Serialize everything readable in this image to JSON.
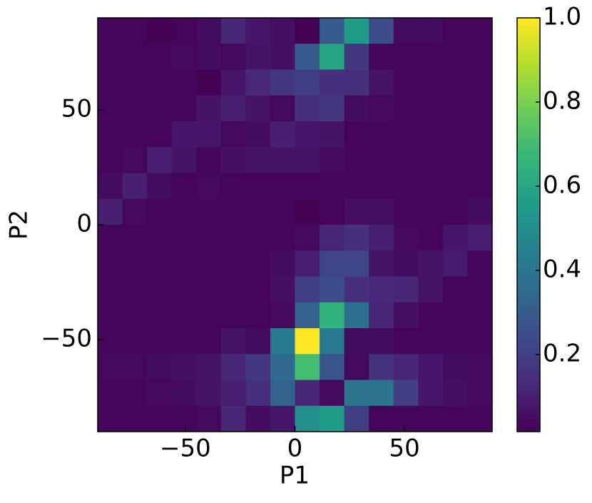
{
  "chart_data": {
    "type": "heatmap",
    "colormap": "viridis",
    "x_label": "P1",
    "y_label": "P2",
    "xlim": [
      -90,
      90
    ],
    "ylim": [
      -90,
      90
    ],
    "xticks": [
      {
        "value": -50,
        "label": "−50"
      },
      0,
      50
    ],
    "yticks": [
      {
        "value": -50,
        "label": "−50"
      },
      0,
      50
    ],
    "clim": [
      0.017,
      1
    ],
    "cticks": [
      0.2,
      0.4,
      0.6,
      0.8,
      {
        "value": 1,
        "label": "1.0"
      }
    ],
    "z": [
      [
        0.03,
        0.03,
        0.02,
        0.03,
        0.05,
        0.12,
        0.08,
        0.06,
        0.02,
        0.3,
        0.55,
        0.25,
        0.05,
        0.05,
        0.03,
        0.03
      ],
      [
        0.03,
        0.03,
        0.03,
        0.04,
        0.05,
        0.04,
        0.07,
        0.06,
        0.3,
        0.6,
        0.18,
        0.03,
        0.03,
        0.03,
        0.03,
        0.03
      ],
      [
        0.03,
        0.03,
        0.03,
        0.03,
        0.02,
        0.08,
        0.13,
        0.18,
        0.2,
        0.15,
        0.15,
        0.07,
        0.03,
        0.03,
        0.03,
        0.03
      ],
      [
        0.03,
        0.03,
        0.03,
        0.03,
        0.07,
        0.1,
        0.07,
        0.04,
        0.15,
        0.18,
        0.05,
        0.04,
        0.03,
        0.03,
        0.03,
        0.03
      ],
      [
        0.03,
        0.03,
        0.03,
        0.08,
        0.08,
        0.04,
        0.05,
        0.1,
        0.08,
        0.07,
        0.03,
        0.03,
        0.03,
        0.03,
        0.03,
        0.03
      ],
      [
        0.03,
        0.04,
        0.1,
        0.07,
        0.03,
        0.06,
        0.07,
        0.07,
        0.07,
        0.04,
        0.03,
        0.03,
        0.03,
        0.03,
        0.03,
        0.03
      ],
      [
        0.05,
        0.1,
        0.05,
        0.03,
        0.04,
        0.03,
        0.03,
        0.03,
        0.03,
        0.03,
        0.03,
        0.03,
        0.03,
        0.03,
        0.03,
        0.03
      ],
      [
        0.1,
        0.04,
        0.03,
        0.03,
        0.03,
        0.03,
        0.03,
        0.03,
        0.02,
        0.03,
        0.06,
        0.06,
        0.03,
        0.03,
        0.03,
        0.05
      ],
      [
        0.03,
        0.03,
        0.03,
        0.03,
        0.03,
        0.03,
        0.03,
        0.03,
        0.04,
        0.12,
        0.15,
        0.1,
        0.04,
        0.03,
        0.08,
        0.1
      ],
      [
        0.03,
        0.03,
        0.03,
        0.03,
        0.03,
        0.03,
        0.03,
        0.05,
        0.1,
        0.22,
        0.22,
        0.07,
        0.05,
        0.07,
        0.09,
        0.03
      ],
      [
        0.03,
        0.03,
        0.03,
        0.03,
        0.03,
        0.03,
        0.03,
        0.06,
        0.2,
        0.25,
        0.15,
        0.13,
        0.12,
        0.07,
        0.03,
        0.03
      ],
      [
        0.03,
        0.03,
        0.03,
        0.03,
        0.03,
        0.03,
        0.03,
        0.04,
        0.32,
        0.65,
        0.38,
        0.12,
        0.06,
        0.03,
        0.03,
        0.03
      ],
      [
        0.03,
        0.03,
        0.03,
        0.03,
        0.03,
        0.07,
        0.05,
        0.42,
        1.0,
        0.42,
        0.05,
        0.05,
        0.03,
        0.03,
        0.03,
        0.03
      ],
      [
        0.04,
        0.04,
        0.05,
        0.06,
        0.07,
        0.12,
        0.18,
        0.35,
        0.7,
        0.28,
        0.04,
        0.16,
        0.12,
        0.08,
        0.05,
        0.04
      ],
      [
        0.03,
        0.03,
        0.04,
        0.05,
        0.07,
        0.1,
        0.15,
        0.33,
        0.12,
        0.04,
        0.4,
        0.4,
        0.2,
        0.08,
        0.06,
        0.04
      ],
      [
        0.03,
        0.03,
        0.03,
        0.03,
        0.04,
        0.12,
        0.05,
        0.08,
        0.5,
        0.55,
        0.2,
        0.03,
        0.03,
        0.03,
        0.03,
        0.03
      ]
    ]
  }
}
